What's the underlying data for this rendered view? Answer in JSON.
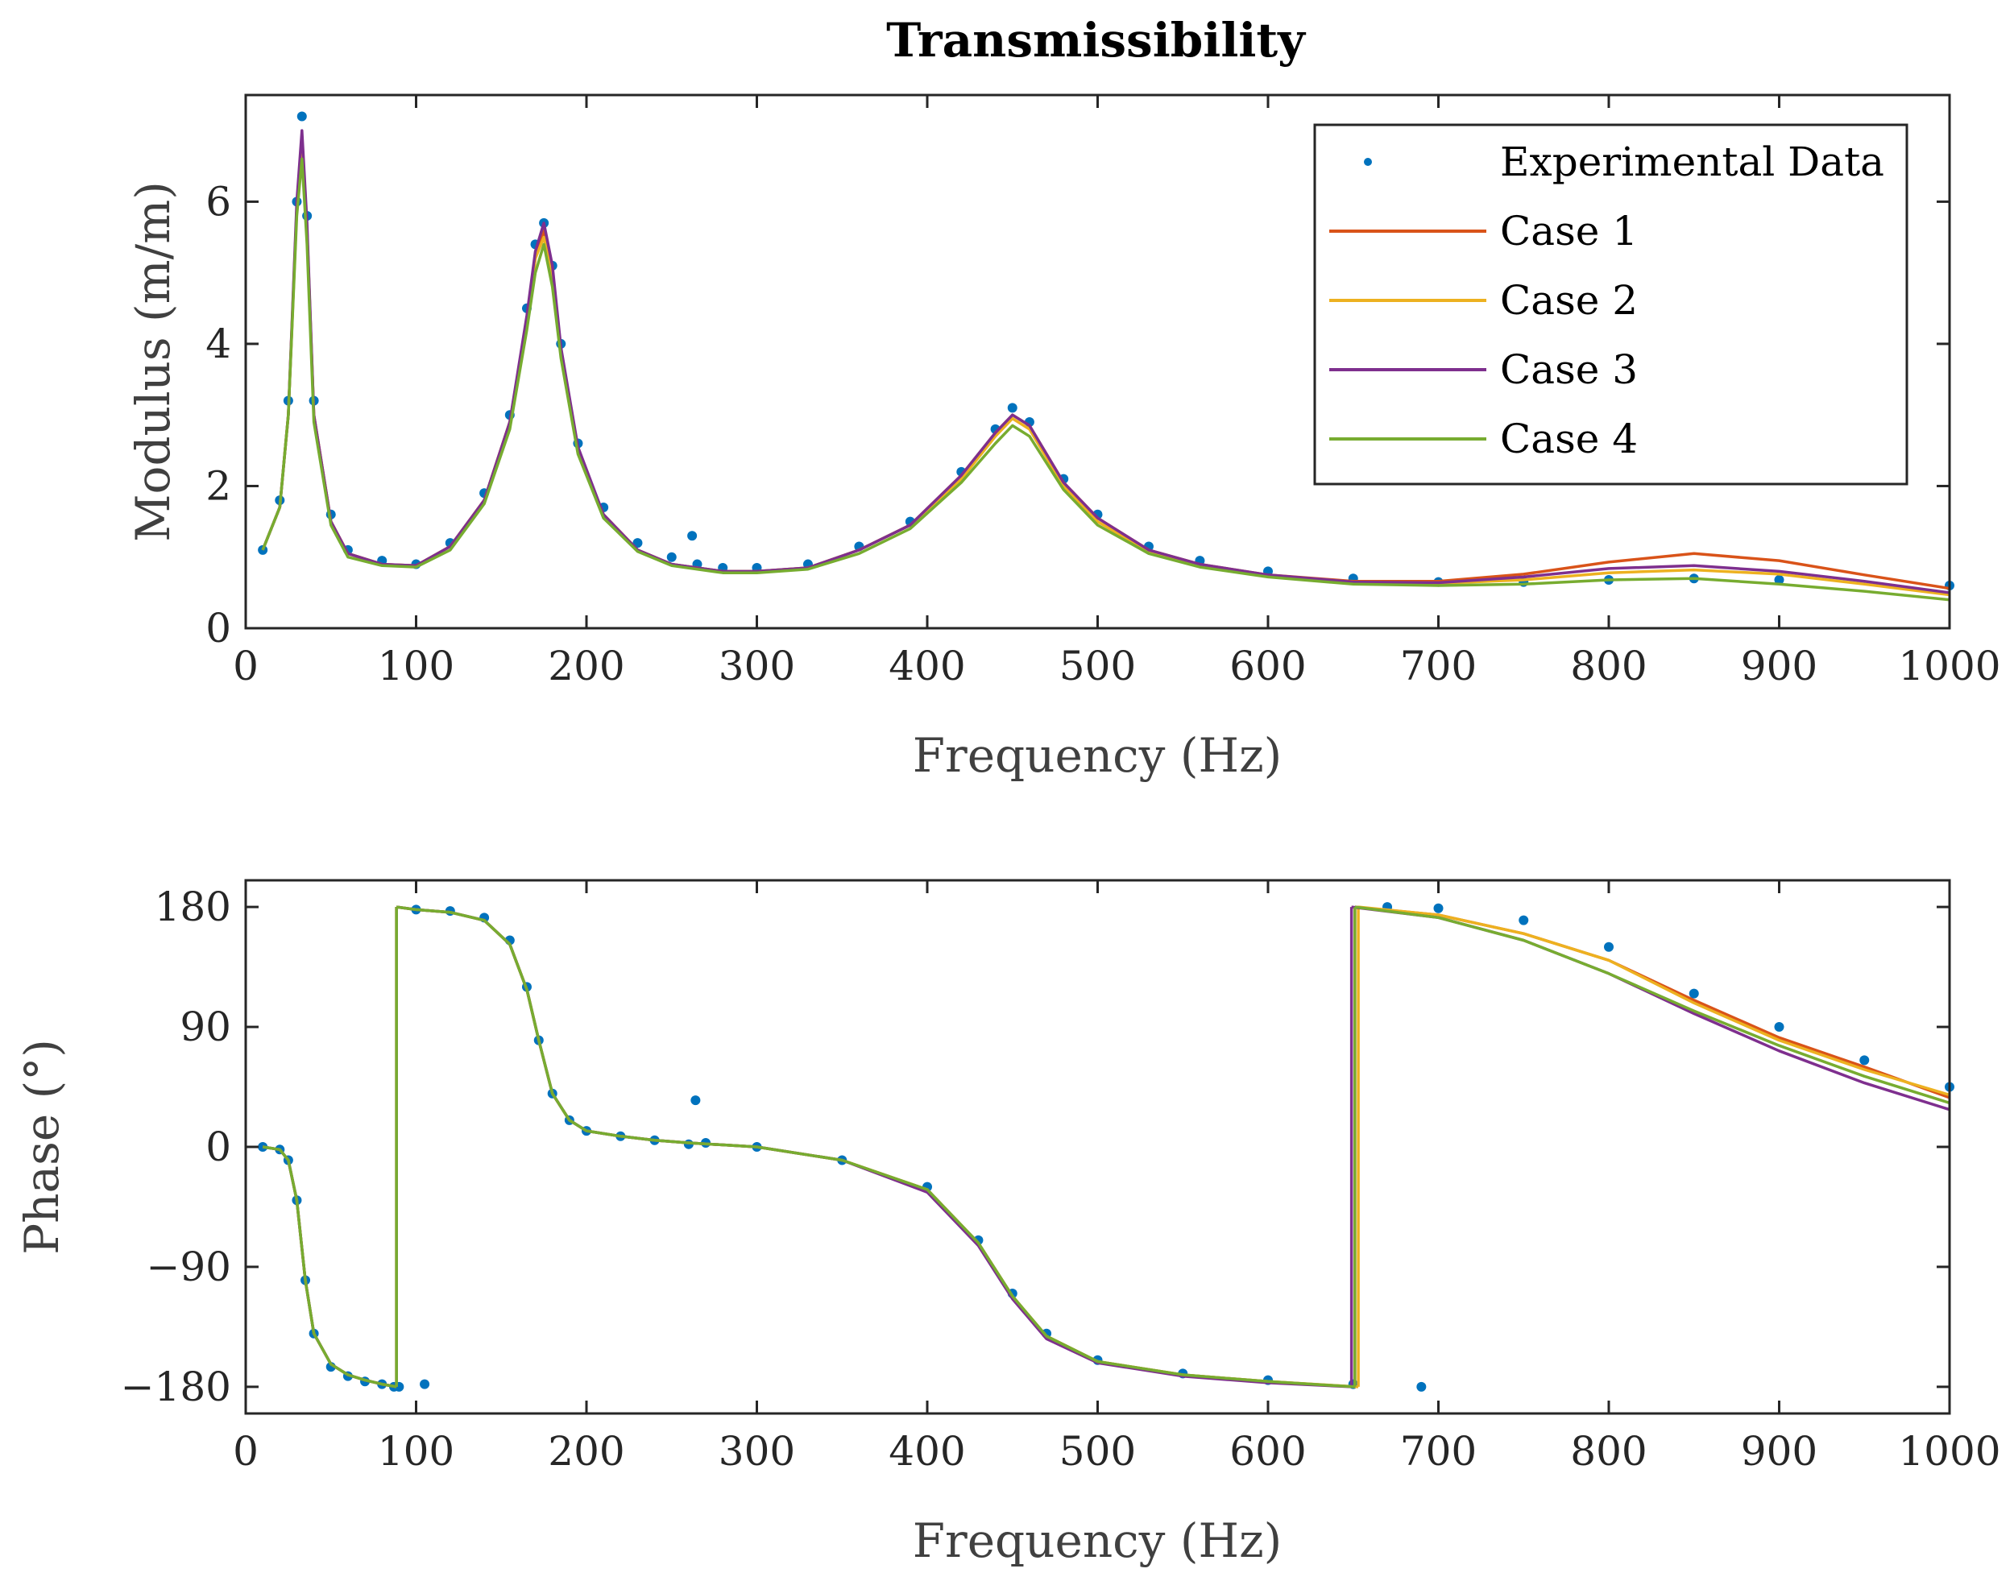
{
  "title": "Transmissibility",
  "legend": {
    "placement": "top-right",
    "entries": [
      {
        "label": "Experimental Data",
        "color": "#0072BD",
        "style": "dot"
      },
      {
        "label": "Case 1",
        "color": "#D95319",
        "style": "line"
      },
      {
        "label": "Case 2",
        "color": "#EDB120",
        "style": "line"
      },
      {
        "label": "Case 3",
        "color": "#7E2F8E",
        "style": "line"
      },
      {
        "label": "Case 4",
        "color": "#77AC30",
        "style": "line"
      }
    ]
  },
  "chart_data": [
    {
      "type": "line",
      "panel": "modulus",
      "xlabel": "Frequency (Hz)",
      "ylabel": "Modulus (m/m)",
      "xlim": [
        0,
        1000
      ],
      "ylim": [
        0,
        7.5
      ],
      "xticks": [
        "0",
        "100",
        "200",
        "300",
        "400",
        "500",
        "600",
        "700",
        "800",
        "900",
        "1000"
      ],
      "yticks": [
        "0",
        "2",
        "4",
        "6"
      ],
      "grid": false,
      "series": [
        {
          "name": "Experimental Data",
          "kind": "scatter",
          "color": "#0072BD",
          "x": [
            10,
            20,
            25,
            30,
            33,
            36,
            40,
            50,
            60,
            80,
            100,
            120,
            140,
            155,
            165,
            170,
            175,
            180,
            185,
            195,
            210,
            230,
            250,
            262,
            265,
            280,
            300,
            330,
            360,
            390,
            420,
            440,
            450,
            460,
            480,
            500,
            530,
            560,
            600,
            650,
            700,
            750,
            800,
            850,
            900,
            1000
          ],
          "y": [
            1.1,
            1.8,
            3.2,
            6.0,
            7.2,
            5.8,
            3.2,
            1.6,
            1.1,
            0.95,
            0.9,
            1.2,
            1.9,
            3.0,
            4.5,
            5.4,
            5.7,
            5.1,
            4.0,
            2.6,
            1.7,
            1.2,
            1.0,
            1.3,
            0.9,
            0.85,
            0.85,
            0.9,
            1.15,
            1.5,
            2.2,
            2.8,
            3.1,
            2.9,
            2.1,
            1.6,
            1.15,
            0.95,
            0.8,
            0.7,
            0.65,
            0.65,
            0.68,
            0.7,
            0.68,
            0.6
          ]
        },
        {
          "name": "Case 1",
          "kind": "line",
          "color": "#D95319",
          "x": [
            10,
            20,
            25,
            30,
            33,
            36,
            40,
            50,
            60,
            80,
            100,
            120,
            140,
            155,
            165,
            170,
            175,
            180,
            185,
            195,
            210,
            230,
            250,
            280,
            300,
            330,
            360,
            390,
            420,
            440,
            450,
            460,
            480,
            500,
            530,
            560,
            600,
            650,
            700,
            750,
            800,
            850,
            900,
            950,
            1000
          ],
          "y": [
            1.1,
            1.7,
            3.0,
            5.9,
            6.9,
            5.6,
            3.0,
            1.5,
            1.05,
            0.9,
            0.88,
            1.15,
            1.8,
            2.9,
            4.3,
            5.2,
            5.6,
            5.0,
            3.9,
            2.5,
            1.6,
            1.1,
            0.9,
            0.8,
            0.8,
            0.85,
            1.1,
            1.45,
            2.15,
            2.75,
            3.0,
            2.85,
            2.05,
            1.55,
            1.1,
            0.9,
            0.75,
            0.66,
            0.66,
            0.76,
            0.93,
            1.05,
            0.95,
            0.75,
            0.56
          ]
        },
        {
          "name": "Case 2",
          "kind": "line",
          "color": "#EDB120",
          "x": [
            10,
            20,
            25,
            30,
            33,
            36,
            40,
            50,
            60,
            80,
            100,
            120,
            140,
            155,
            165,
            170,
            175,
            180,
            185,
            195,
            210,
            230,
            250,
            280,
            300,
            330,
            360,
            390,
            420,
            440,
            450,
            460,
            480,
            500,
            530,
            560,
            600,
            650,
            700,
            750,
            800,
            850,
            900,
            950,
            1000
          ],
          "y": [
            1.1,
            1.7,
            3.0,
            5.9,
            6.9,
            5.6,
            3.0,
            1.5,
            1.05,
            0.9,
            0.88,
            1.15,
            1.8,
            2.9,
            4.3,
            5.2,
            5.5,
            4.9,
            3.85,
            2.5,
            1.6,
            1.1,
            0.9,
            0.8,
            0.8,
            0.85,
            1.1,
            1.45,
            2.1,
            2.7,
            2.95,
            2.8,
            2.0,
            1.5,
            1.08,
            0.88,
            0.74,
            0.65,
            0.63,
            0.68,
            0.78,
            0.82,
            0.76,
            0.62,
            0.47
          ]
        },
        {
          "name": "Case 3",
          "kind": "line",
          "color": "#7E2F8E",
          "x": [
            10,
            20,
            25,
            30,
            33,
            36,
            40,
            50,
            60,
            80,
            100,
            120,
            140,
            155,
            165,
            170,
            175,
            180,
            185,
            195,
            210,
            230,
            250,
            280,
            300,
            330,
            360,
            390,
            420,
            440,
            450,
            460,
            480,
            500,
            530,
            560,
            600,
            650,
            700,
            750,
            800,
            850,
            900,
            950,
            1000
          ],
          "y": [
            1.1,
            1.7,
            3.0,
            6.0,
            7.0,
            5.7,
            3.0,
            1.5,
            1.05,
            0.9,
            0.88,
            1.15,
            1.8,
            2.9,
            4.4,
            5.3,
            5.7,
            5.1,
            3.95,
            2.55,
            1.6,
            1.1,
            0.9,
            0.8,
            0.8,
            0.85,
            1.1,
            1.45,
            2.15,
            2.75,
            3.0,
            2.85,
            2.05,
            1.55,
            1.1,
            0.9,
            0.75,
            0.65,
            0.64,
            0.72,
            0.84,
            0.88,
            0.8,
            0.66,
            0.5
          ]
        },
        {
          "name": "Case 4",
          "kind": "line",
          "color": "#77AC30",
          "x": [
            10,
            20,
            25,
            30,
            33,
            36,
            40,
            50,
            60,
            80,
            100,
            120,
            140,
            155,
            165,
            170,
            175,
            180,
            185,
            195,
            210,
            230,
            250,
            280,
            300,
            330,
            360,
            390,
            420,
            440,
            450,
            460,
            480,
            500,
            530,
            560,
            600,
            650,
            700,
            750,
            800,
            850,
            900,
            950,
            1000
          ],
          "y": [
            1.1,
            1.7,
            3.0,
            5.8,
            6.6,
            5.4,
            2.9,
            1.45,
            1.0,
            0.88,
            0.86,
            1.1,
            1.75,
            2.8,
            4.2,
            5.0,
            5.4,
            4.8,
            3.8,
            2.45,
            1.55,
            1.08,
            0.88,
            0.78,
            0.78,
            0.83,
            1.05,
            1.4,
            2.05,
            2.6,
            2.85,
            2.7,
            1.95,
            1.45,
            1.05,
            0.86,
            0.72,
            0.62,
            0.6,
            0.62,
            0.68,
            0.7,
            0.62,
            0.52,
            0.4
          ]
        }
      ]
    },
    {
      "type": "line",
      "panel": "phase",
      "xlabel": "Frequency (Hz)",
      "ylabel": "Phase (°)",
      "xlim": [
        0,
        1000
      ],
      "ylim": [
        -200,
        200
      ],
      "xticks": [
        "0",
        "100",
        "200",
        "300",
        "400",
        "500",
        "600",
        "700",
        "800",
        "900",
        "1000"
      ],
      "yticks": [
        "180",
        "90",
        "0",
        "−90",
        "−180"
      ],
      "grid": false,
      "series": [
        {
          "name": "Experimental Data",
          "kind": "scatter",
          "color": "#0072BD",
          "x": [
            10,
            20,
            25,
            30,
            35,
            40,
            50,
            60,
            70,
            80,
            87,
            90,
            105,
            100,
            120,
            140,
            155,
            165,
            172,
            180,
            190,
            200,
            220,
            240,
            260,
            264,
            270,
            300,
            350,
            400,
            430,
            450,
            470,
            500,
            550,
            600,
            650,
            690,
            670,
            700,
            750,
            800,
            850,
            900,
            950,
            1000
          ],
          "y": [
            0,
            -2,
            -10,
            -40,
            -100,
            -140,
            -165,
            -172,
            -176,
            -178,
            -180,
            -180,
            -178,
            178,
            177,
            172,
            155,
            120,
            80,
            40,
            20,
            12,
            8,
            5,
            2,
            35,
            3,
            0,
            -10,
            -30,
            -70,
            -110,
            -140,
            -160,
            -170,
            -175,
            -178,
            -180,
            180,
            179,
            170,
            150,
            115,
            90,
            65,
            45
          ]
        },
        {
          "name": "Case 1",
          "kind": "line",
          "color": "#D95319",
          "x": [
            10,
            20,
            25,
            30,
            35,
            40,
            50,
            60,
            70,
            80,
            88.5,
            88.5,
            100,
            120,
            140,
            155,
            165,
            172,
            180,
            190,
            200,
            220,
            240,
            260,
            300,
            350,
            400,
            430,
            450,
            470,
            500,
            550,
            600,
            651,
            651,
            700,
            750,
            800,
            850,
            900,
            950,
            1000
          ],
          "y": [
            0,
            -2,
            -10,
            -40,
            -100,
            -140,
            -163,
            -171,
            -175,
            -178,
            -180,
            180,
            178,
            176,
            170,
            152,
            118,
            80,
            40,
            20,
            12,
            8,
            5,
            3,
            0,
            -10,
            -32,
            -72,
            -112,
            -142,
            -161,
            -171,
            -176,
            -180,
            180,
            174,
            160,
            140,
            110,
            82,
            60,
            37
          ]
        },
        {
          "name": "Case 2",
          "kind": "line",
          "color": "#EDB120",
          "x": [
            10,
            20,
            25,
            30,
            35,
            40,
            50,
            60,
            70,
            80,
            88.5,
            88.5,
            100,
            120,
            140,
            155,
            165,
            172,
            180,
            190,
            200,
            220,
            240,
            260,
            300,
            350,
            400,
            430,
            450,
            470,
            500,
            550,
            600,
            653,
            653,
            700,
            750,
            800,
            850,
            900,
            950,
            1000
          ],
          "y": [
            0,
            -2,
            -10,
            -40,
            -100,
            -140,
            -163,
            -171,
            -175,
            -178,
            -180,
            180,
            178,
            176,
            170,
            152,
            118,
            80,
            40,
            20,
            12,
            8,
            5,
            3,
            0,
            -10,
            -32,
            -72,
            -112,
            -142,
            -161,
            -171,
            -176,
            -180,
            180,
            174,
            160,
            140,
            108,
            80,
            58,
            39
          ]
        },
        {
          "name": "Case 3",
          "kind": "line",
          "color": "#7E2F8E",
          "x": [
            10,
            20,
            25,
            30,
            35,
            40,
            50,
            60,
            70,
            80,
            88.5,
            88.5,
            100,
            120,
            140,
            155,
            165,
            172,
            180,
            190,
            200,
            220,
            240,
            260,
            300,
            350,
            400,
            430,
            450,
            470,
            500,
            550,
            600,
            649,
            649,
            700,
            750,
            800,
            850,
            900,
            950,
            1000
          ],
          "y": [
            0,
            -2,
            -10,
            -40,
            -100,
            -140,
            -163,
            -171,
            -175,
            -178,
            -180,
            180,
            178,
            176,
            170,
            152,
            118,
            80,
            40,
            20,
            12,
            8,
            5,
            3,
            0,
            -10,
            -34,
            -74,
            -114,
            -144,
            -162,
            -172,
            -177,
            -180,
            180,
            172,
            155,
            130,
            100,
            72,
            48,
            28
          ]
        },
        {
          "name": "Case 4",
          "kind": "line",
          "color": "#77AC30",
          "x": [
            10,
            20,
            25,
            30,
            35,
            40,
            50,
            60,
            70,
            80,
            88.5,
            88.5,
            100,
            120,
            140,
            155,
            165,
            172,
            180,
            190,
            200,
            220,
            240,
            260,
            300,
            350,
            400,
            430,
            450,
            470,
            500,
            550,
            600,
            651,
            651,
            700,
            750,
            800,
            850,
            900,
            950,
            1000
          ],
          "y": [
            0,
            -2,
            -10,
            -40,
            -100,
            -140,
            -163,
            -171,
            -175,
            -178,
            -180,
            180,
            178,
            176,
            170,
            152,
            118,
            80,
            40,
            20,
            12,
            8,
            5,
            3,
            0,
            -10,
            -32,
            -72,
            -112,
            -142,
            -161,
            -171,
            -176,
            -180,
            180,
            172,
            155,
            130,
            102,
            76,
            53,
            33
          ]
        }
      ]
    }
  ]
}
